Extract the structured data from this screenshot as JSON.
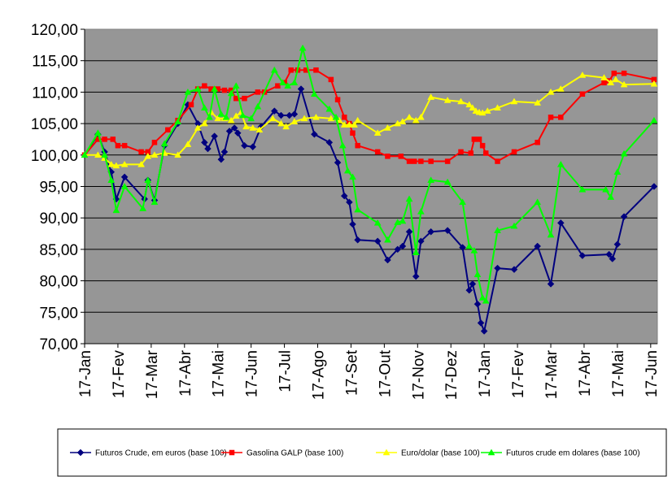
{
  "chart_data": {
    "type": "line",
    "title": "",
    "xlabel": "",
    "ylabel": "",
    "ylim": [
      70,
      120
    ],
    "y_ticks": [
      "70,00",
      "75,00",
      "80,00",
      "85,00",
      "90,00",
      "95,00",
      "100,00",
      "105,00",
      "110,00",
      "115,00",
      "120,00"
    ],
    "x_ticks": [
      "17-Jan",
      "17-Fev",
      "17-Mar",
      "17-Abr",
      "17-Mai",
      "17-Jun",
      "17-Jul",
      "17-Ago",
      "17-Set",
      "17-Out",
      "17-Nov",
      "17-Dez",
      "17-Jan",
      "17-Fev",
      "17-Mar",
      "17-Abr",
      "17-Mai",
      "17-Jun"
    ],
    "x_unit": "months elapsed since first 17-Jan tick",
    "xlim": [
      0,
      17.2
    ],
    "plot_background": "#969696",
    "grid": "horizontal",
    "legend_position": "bottom",
    "series": [
      {
        "name": "Futuros Crude, em euros (base 100)",
        "color": "#00007F",
        "marker": "diamond",
        "points": [
          [
            0,
            100.0
          ],
          [
            0.4,
            103.3
          ],
          [
            0.6,
            100.5
          ],
          [
            0.8,
            97.3
          ],
          [
            0.95,
            93.0
          ],
          [
            1.2,
            96.5
          ],
          [
            1.8,
            93.0
          ],
          [
            1.9,
            96.0
          ],
          [
            2.1,
            92.8
          ],
          [
            2.4,
            101.5
          ],
          [
            2.8,
            105.0
          ],
          [
            3.1,
            108.0
          ],
          [
            3.4,
            105.0
          ],
          [
            3.6,
            102.0
          ],
          [
            3.7,
            101.0
          ],
          [
            3.9,
            103.0
          ],
          [
            4.1,
            99.3
          ],
          [
            4.2,
            100.5
          ],
          [
            4.35,
            103.8
          ],
          [
            4.5,
            104.3
          ],
          [
            4.6,
            103.5
          ],
          [
            4.8,
            101.5
          ],
          [
            5.05,
            101.3
          ],
          [
            5.3,
            104.5
          ],
          [
            5.7,
            107.0
          ],
          [
            5.9,
            106.3
          ],
          [
            6.15,
            106.3
          ],
          [
            6.3,
            106.5
          ],
          [
            6.5,
            110.5
          ],
          [
            6.9,
            103.3
          ],
          [
            7.35,
            102.0
          ],
          [
            7.6,
            98.8
          ],
          [
            7.8,
            93.5
          ],
          [
            7.95,
            92.5
          ],
          [
            8.05,
            89.0
          ],
          [
            8.2,
            86.5
          ],
          [
            8.8,
            86.3
          ],
          [
            9.1,
            83.3
          ],
          [
            9.4,
            85.0
          ],
          [
            9.55,
            85.5
          ],
          [
            9.75,
            87.8
          ],
          [
            9.95,
            80.7
          ],
          [
            10.1,
            86.3
          ],
          [
            10.4,
            87.8
          ],
          [
            10.9,
            88.0
          ],
          [
            11.35,
            85.3
          ],
          [
            11.55,
            78.5
          ],
          [
            11.65,
            79.5
          ],
          [
            11.8,
            76.3
          ],
          [
            11.9,
            73.3
          ],
          [
            12.0,
            72.0
          ],
          [
            12.4,
            82.0
          ],
          [
            12.9,
            81.8
          ],
          [
            13.6,
            85.5
          ],
          [
            14.0,
            79.5
          ],
          [
            14.3,
            89.2
          ],
          [
            14.95,
            84.0
          ],
          [
            15.75,
            84.2
          ],
          [
            15.85,
            83.5
          ],
          [
            16.0,
            85.8
          ],
          [
            16.2,
            90.2
          ],
          [
            17.1,
            95.0
          ]
        ]
      },
      {
        "name": "Gasolina GALP (base 100)",
        "color": "#FF0000",
        "marker": "square",
        "points": [
          [
            0,
            100.0
          ],
          [
            0.4,
            102.5
          ],
          [
            0.6,
            102.5
          ],
          [
            0.85,
            102.5
          ],
          [
            1.0,
            101.5
          ],
          [
            1.2,
            101.5
          ],
          [
            1.7,
            100.5
          ],
          [
            1.9,
            100.5
          ],
          [
            2.1,
            102.0
          ],
          [
            2.5,
            104.0
          ],
          [
            2.8,
            105.5
          ],
          [
            3.2,
            108.0
          ],
          [
            3.4,
            110.5
          ],
          [
            3.6,
            111.0
          ],
          [
            3.8,
            110.5
          ],
          [
            4.0,
            110.5
          ],
          [
            4.2,
            110.3
          ],
          [
            4.4,
            110.3
          ],
          [
            4.55,
            109.0
          ],
          [
            4.8,
            109.0
          ],
          [
            5.2,
            110.0
          ],
          [
            5.4,
            110.0
          ],
          [
            5.8,
            111.0
          ],
          [
            6.0,
            111.5
          ],
          [
            6.2,
            113.5
          ],
          [
            6.4,
            113.5
          ],
          [
            6.65,
            113.5
          ],
          [
            6.95,
            113.5
          ],
          [
            7.4,
            112.0
          ],
          [
            7.6,
            108.8
          ],
          [
            7.8,
            106.0
          ],
          [
            7.95,
            105.0
          ],
          [
            8.05,
            103.5
          ],
          [
            8.2,
            101.5
          ],
          [
            8.8,
            100.5
          ],
          [
            9.1,
            99.8
          ],
          [
            9.5,
            99.8
          ],
          [
            9.75,
            99.0
          ],
          [
            9.9,
            99.0
          ],
          [
            10.1,
            99.0
          ],
          [
            10.4,
            99.0
          ],
          [
            10.9,
            99.0
          ],
          [
            11.3,
            100.5
          ],
          [
            11.6,
            100.3
          ],
          [
            11.7,
            102.5
          ],
          [
            11.85,
            102.5
          ],
          [
            11.95,
            101.5
          ],
          [
            12.05,
            100.3
          ],
          [
            12.4,
            99.0
          ],
          [
            12.9,
            100.5
          ],
          [
            13.6,
            102.0
          ],
          [
            14.0,
            106.0
          ],
          [
            14.3,
            106.0
          ],
          [
            14.95,
            109.7
          ],
          [
            15.6,
            111.5
          ],
          [
            15.75,
            111.8
          ],
          [
            15.9,
            113.0
          ],
          [
            16.2,
            113.0
          ],
          [
            17.1,
            112.0
          ]
        ]
      },
      {
        "name": "Euro/dolar (base 100)",
        "color": "#FFFF00",
        "marker": "triangle",
        "points": [
          [
            0,
            100.0
          ],
          [
            0.4,
            100.0
          ],
          [
            0.6,
            99.5
          ],
          [
            0.8,
            98.5
          ],
          [
            0.95,
            98.3
          ],
          [
            1.2,
            98.5
          ],
          [
            1.7,
            98.5
          ],
          [
            1.9,
            99.8
          ],
          [
            2.1,
            100.0
          ],
          [
            2.4,
            100.3
          ],
          [
            2.8,
            100.0
          ],
          [
            3.1,
            101.7
          ],
          [
            3.4,
            104.3
          ],
          [
            3.6,
            105.0
          ],
          [
            3.8,
            106.8
          ],
          [
            4.0,
            105.8
          ],
          [
            4.2,
            105.8
          ],
          [
            4.4,
            105.5
          ],
          [
            4.55,
            106.2
          ],
          [
            4.7,
            106.8
          ],
          [
            4.85,
            104.5
          ],
          [
            5.05,
            104.3
          ],
          [
            5.25,
            104.0
          ],
          [
            5.65,
            105.8
          ],
          [
            5.9,
            105.0
          ],
          [
            6.05,
            104.5
          ],
          [
            6.3,
            105.3
          ],
          [
            6.6,
            105.8
          ],
          [
            6.95,
            106.0
          ],
          [
            7.4,
            105.8
          ],
          [
            7.65,
            105.5
          ],
          [
            7.8,
            104.8
          ],
          [
            7.95,
            104.8
          ],
          [
            8.1,
            104.8
          ],
          [
            8.2,
            105.5
          ],
          [
            8.8,
            103.5
          ],
          [
            9.1,
            104.3
          ],
          [
            9.4,
            105.0
          ],
          [
            9.55,
            105.3
          ],
          [
            9.75,
            106.0
          ],
          [
            9.95,
            105.5
          ],
          [
            10.1,
            106.0
          ],
          [
            10.4,
            109.2
          ],
          [
            10.9,
            108.7
          ],
          [
            11.3,
            108.5
          ],
          [
            11.55,
            108.0
          ],
          [
            11.65,
            107.5
          ],
          [
            11.75,
            107.0
          ],
          [
            11.85,
            106.8
          ],
          [
            11.95,
            106.7
          ],
          [
            12.1,
            107.0
          ],
          [
            12.4,
            107.5
          ],
          [
            12.9,
            108.5
          ],
          [
            13.6,
            108.3
          ],
          [
            14.0,
            110.0
          ],
          [
            14.3,
            110.5
          ],
          [
            14.95,
            112.7
          ],
          [
            15.6,
            112.3
          ],
          [
            15.8,
            111.5
          ],
          [
            15.95,
            112.0
          ],
          [
            16.2,
            111.2
          ],
          [
            17.1,
            111.3
          ]
        ]
      },
      {
        "name": "Futuros crude em dolares (base 100)",
        "color": "#00FF00",
        "marker": "triangle",
        "points": [
          [
            0,
            100.0
          ],
          [
            0.4,
            103.5
          ],
          [
            0.6,
            100.0
          ],
          [
            0.8,
            96.0
          ],
          [
            0.95,
            91.2
          ],
          [
            1.2,
            95.0
          ],
          [
            1.75,
            91.5
          ],
          [
            1.9,
            96.0
          ],
          [
            2.1,
            92.5
          ],
          [
            2.4,
            101.8
          ],
          [
            2.8,
            105.3
          ],
          [
            3.1,
            110.0
          ],
          [
            3.4,
            110.5
          ],
          [
            3.6,
            107.5
          ],
          [
            3.75,
            106.0
          ],
          [
            3.9,
            110.5
          ],
          [
            4.1,
            106.5
          ],
          [
            4.25,
            106.0
          ],
          [
            4.4,
            109.8
          ],
          [
            4.55,
            111.0
          ],
          [
            4.75,
            106.3
          ],
          [
            5.0,
            105.8
          ],
          [
            5.2,
            107.7
          ],
          [
            5.7,
            113.5
          ],
          [
            5.95,
            111.5
          ],
          [
            6.1,
            111.0
          ],
          [
            6.3,
            111.5
          ],
          [
            6.55,
            117.0
          ],
          [
            6.9,
            109.7
          ],
          [
            7.35,
            107.3
          ],
          [
            7.55,
            106.0
          ],
          [
            7.75,
            101.5
          ],
          [
            7.9,
            97.5
          ],
          [
            8.05,
            96.5
          ],
          [
            8.2,
            91.3
          ],
          [
            8.8,
            89.2
          ],
          [
            9.1,
            86.5
          ],
          [
            9.4,
            89.3
          ],
          [
            9.55,
            89.5
          ],
          [
            9.75,
            93.0
          ],
          [
            9.95,
            84.5
          ],
          [
            10.1,
            91.0
          ],
          [
            10.4,
            96.0
          ],
          [
            10.9,
            95.7
          ],
          [
            11.35,
            92.5
          ],
          [
            11.55,
            85.5
          ],
          [
            11.7,
            84.8
          ],
          [
            11.8,
            81.0
          ],
          [
            11.95,
            77.3
          ],
          [
            12.05,
            76.8
          ],
          [
            12.4,
            88.0
          ],
          [
            12.9,
            88.7
          ],
          [
            13.6,
            92.5
          ],
          [
            14.0,
            87.3
          ],
          [
            14.3,
            98.5
          ],
          [
            14.95,
            94.5
          ],
          [
            15.65,
            94.5
          ],
          [
            15.8,
            93.3
          ],
          [
            16.0,
            97.3
          ],
          [
            16.2,
            100.2
          ],
          [
            17.1,
            105.5
          ]
        ]
      }
    ]
  }
}
